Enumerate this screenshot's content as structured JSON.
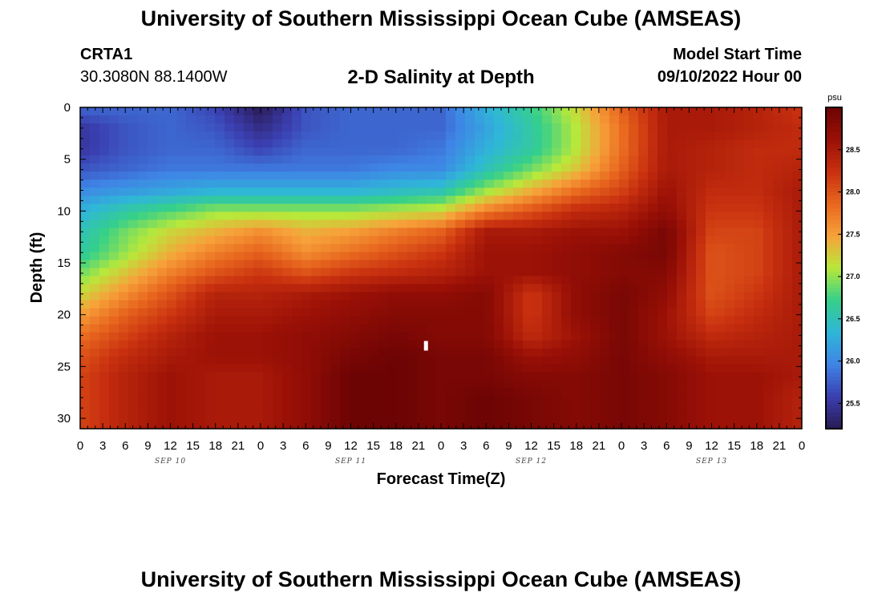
{
  "header": {
    "title": "University of Southern Mississippi Ocean Cube (AMSEAS)",
    "station_id": "CRTA1",
    "coordinates": "30.3080N  88.1400W",
    "subtitle": "2-D Salinity at Depth",
    "model_start_label": "Model Start Time",
    "model_start_value": "09/10/2022 Hour 00"
  },
  "footer": {
    "repeated_title": "University of Southern Mississippi Ocean Cube (AMSEAS)"
  },
  "colors": {
    "scale": [
      "#2a1a55",
      "#3b3fb0",
      "#3f84e6",
      "#2fb6d8",
      "#35d08a",
      "#b8e83a",
      "#f7a23a",
      "#e8661e",
      "#c8300f",
      "#9a1006",
      "#6d0404"
    ]
  },
  "chart_data": {
    "type": "heatmap",
    "title": "2-D Salinity at Depth",
    "xlabel": "Forecast Time(Z)",
    "ylabel": "Depth (ft)",
    "x_hours": [
      0,
      96
    ],
    "x_tick_labels": [
      "0",
      "3",
      "6",
      "9",
      "12",
      "15",
      "18",
      "21",
      "0",
      "3",
      "6",
      "9",
      "12",
      "15",
      "18",
      "21",
      "0",
      "3",
      "6",
      "9",
      "12",
      "15",
      "18",
      "21",
      "0",
      "3",
      "6",
      "9",
      "12",
      "15",
      "18",
      "21",
      "0"
    ],
    "day_labels": [
      "SEP 10",
      "SEP 11",
      "SEP 12",
      "SEP 13"
    ],
    "ylim": [
      0,
      31
    ],
    "y_tick_labels": [
      "0",
      "5",
      "10",
      "15",
      "20",
      "25",
      "30"
    ],
    "y_tick_values": [
      0,
      5,
      10,
      15,
      20,
      25,
      30
    ],
    "colorbar": {
      "unit": "psu",
      "range": [
        25.2,
        29.0
      ],
      "tick_labels": [
        "28.5",
        "28.0",
        "27.5",
        "27.0",
        "26.5",
        "26.0",
        "25.5"
      ],
      "tick_values": [
        28.5,
        28.0,
        27.5,
        27.0,
        26.5,
        26.0,
        25.5
      ]
    },
    "depth_levels": [
      0,
      2,
      4,
      6,
      8,
      10,
      12,
      14,
      16,
      18,
      20,
      22,
      24,
      26,
      28,
      31
    ],
    "time_hours": [
      0,
      6,
      12,
      18,
      24,
      30,
      36,
      42,
      48,
      54,
      60,
      66,
      72,
      78,
      84,
      90,
      96
    ],
    "salinity_grid": [
      [
        25.8,
        25.8,
        25.8,
        25.6,
        25.2,
        25.7,
        25.8,
        25.8,
        25.8,
        26.3,
        26.7,
        27.2,
        27.9,
        28.5,
        28.5,
        28.4,
        28.2
      ],
      [
        25.5,
        25.7,
        25.8,
        25.7,
        25.4,
        25.7,
        25.8,
        25.8,
        25.8,
        26.2,
        26.6,
        27.1,
        27.8,
        28.5,
        28.5,
        28.4,
        28.3
      ],
      [
        25.5,
        25.7,
        25.8,
        25.8,
        25.6,
        25.8,
        25.8,
        25.8,
        25.9,
        26.3,
        26.6,
        27.1,
        27.8,
        28.5,
        28.4,
        28.3,
        28.3
      ],
      [
        25.7,
        25.8,
        25.9,
        25.9,
        25.9,
        25.9,
        25.9,
        26.0,
        26.0,
        26.5,
        26.9,
        27.3,
        27.9,
        28.5,
        28.4,
        28.3,
        28.4
      ],
      [
        26.0,
        26.1,
        26.2,
        26.3,
        26.3,
        26.3,
        26.3,
        26.4,
        26.5,
        27.0,
        27.4,
        27.8,
        28.1,
        28.6,
        28.3,
        28.3,
        28.5
      ],
      [
        26.3,
        26.6,
        26.8,
        27.0,
        27.0,
        27.0,
        27.0,
        27.1,
        27.2,
        27.7,
        28.0,
        28.3,
        28.4,
        28.7,
        28.2,
        28.2,
        28.5
      ],
      [
        26.5,
        26.9,
        27.2,
        27.4,
        27.6,
        27.4,
        27.5,
        27.7,
        27.9,
        28.5,
        28.5,
        28.6,
        28.6,
        28.9,
        28.1,
        28.1,
        28.5
      ],
      [
        26.6,
        27.0,
        27.4,
        27.7,
        27.9,
        27.6,
        27.8,
        28.0,
        28.2,
        28.6,
        28.6,
        28.7,
        28.8,
        28.9,
        28.0,
        28.1,
        28.5
      ],
      [
        26.9,
        27.3,
        27.7,
        28.0,
        28.2,
        28.0,
        28.2,
        28.3,
        28.4,
        28.6,
        28.6,
        28.7,
        28.8,
        28.8,
        28.0,
        28.1,
        28.5
      ],
      [
        27.2,
        27.6,
        28.0,
        28.4,
        28.4,
        28.5,
        28.6,
        28.7,
        28.7,
        28.8,
        28.2,
        28.7,
        28.9,
        28.7,
        28.0,
        28.2,
        28.5
      ],
      [
        27.5,
        27.9,
        28.2,
        28.5,
        28.5,
        28.6,
        28.7,
        28.8,
        28.8,
        28.8,
        28.2,
        28.7,
        28.9,
        28.6,
        28.1,
        28.3,
        28.5
      ],
      [
        27.8,
        28.1,
        28.4,
        28.6,
        28.6,
        28.7,
        28.8,
        28.9,
        28.8,
        28.8,
        28.3,
        28.6,
        28.9,
        28.6,
        28.3,
        28.4,
        28.5
      ],
      [
        28.0,
        28.3,
        28.5,
        28.6,
        28.6,
        28.7,
        28.9,
        29.0,
        28.9,
        28.9,
        28.6,
        28.7,
        28.9,
        28.7,
        28.5,
        28.5,
        28.5
      ],
      [
        28.1,
        28.4,
        28.6,
        28.5,
        28.5,
        28.7,
        29.0,
        29.0,
        28.9,
        28.9,
        28.8,
        28.8,
        28.9,
        28.8,
        28.6,
        28.6,
        28.5
      ],
      [
        28.1,
        28.4,
        28.6,
        28.5,
        28.5,
        28.7,
        29.0,
        29.0,
        28.9,
        29.0,
        28.9,
        28.8,
        28.9,
        28.8,
        28.6,
        28.6,
        28.4
      ],
      [
        28.1,
        28.4,
        28.6,
        28.5,
        28.5,
        28.7,
        29.0,
        29.0,
        28.9,
        29.0,
        28.9,
        28.8,
        28.9,
        28.8,
        28.6,
        28.6,
        28.4
      ]
    ],
    "marker": {
      "hour": 46,
      "depth": 23
    }
  }
}
